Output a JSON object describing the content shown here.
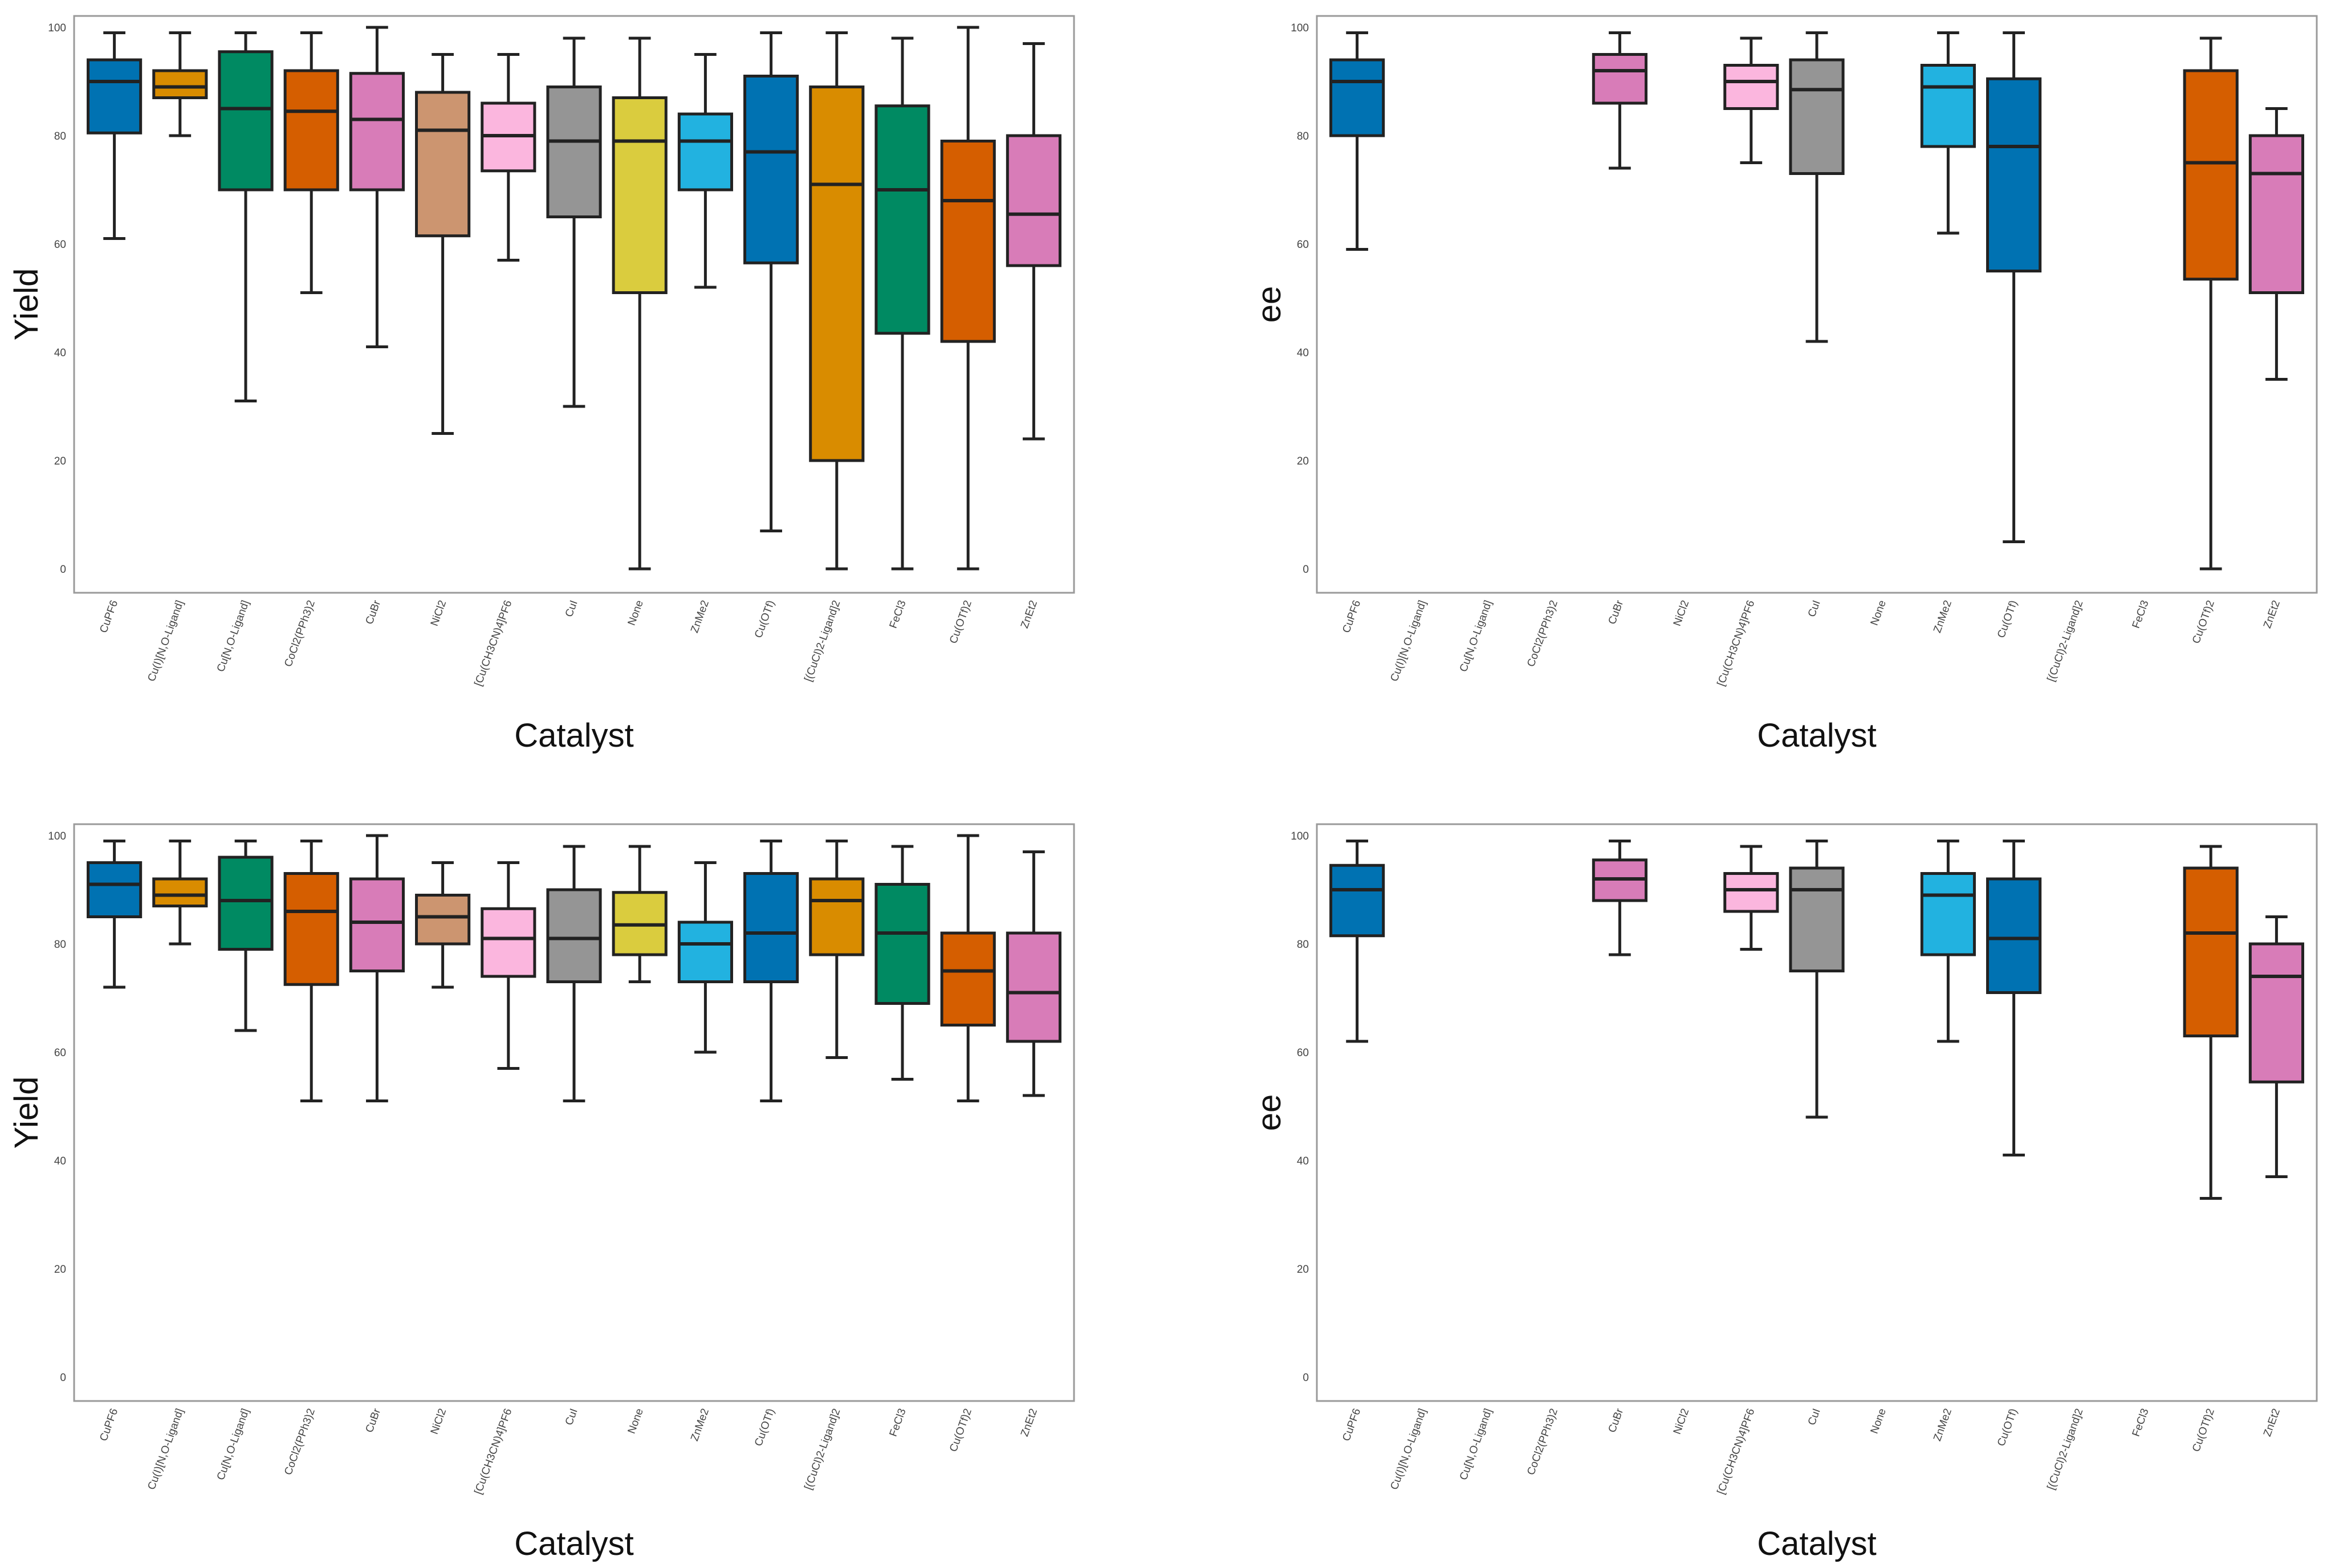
{
  "figure_title": "",
  "chart_data": [
    {
      "type": "box",
      "panel": "top-left",
      "title": "",
      "xlabel": "Catalyst",
      "ylabel": "Yield",
      "ylim": [
        0,
        100
      ],
      "yticks": [
        "0",
        "20",
        "40",
        "60",
        "80",
        "100"
      ],
      "categories": [
        "CuPF6",
        "Cu(I)[N,O-Ligand]",
        "Cu[N,O-Ligand]",
        "CoCl2(PPh3)2",
        "CuBr",
        "NiCl2",
        "[Cu(CH3CN)4]PF6",
        "CuI",
        "None",
        "ZnMe2",
        "Cu(OTf)",
        "[(CuCl)2-Ligand]2",
        "FeCl3",
        "Cu(OTf)2",
        "ZnEt2"
      ],
      "colors": [
        "#0072B2",
        "#D98C00",
        "#008A62",
        "#D55E00",
        "#D87CB8",
        "#CC9570",
        "#FBB6DE",
        "#959595",
        "#DACC3E",
        "#22B2E0",
        "#0072B2",
        "#D98C00",
        "#008A62",
        "#D55E00",
        "#D87CB8"
      ],
      "series": [
        {
          "name": "CuPF6",
          "min": 61,
          "q1": 80.5,
          "median": 90,
          "q3": 94,
          "max": 99
        },
        {
          "name": "Cu(I)[N,O-Ligand]",
          "min": 80,
          "q1": 87,
          "median": 89,
          "q3": 92,
          "max": 99
        },
        {
          "name": "Cu[N,O-Ligand]",
          "min": 31,
          "q1": 70,
          "median": 85,
          "q3": 95.5,
          "max": 99
        },
        {
          "name": "CoCl2(PPh3)2",
          "min": 51,
          "q1": 70,
          "median": 84.5,
          "q3": 92,
          "max": 99
        },
        {
          "name": "CuBr",
          "min": 41,
          "q1": 70,
          "median": 83,
          "q3": 91.5,
          "max": 100
        },
        {
          "name": "NiCl2",
          "min": 25,
          "q1": 61.5,
          "median": 81,
          "q3": 88,
          "max": 95
        },
        {
          "name": "[Cu(CH3CN)4]PF6",
          "min": 57,
          "q1": 73.5,
          "median": 80,
          "q3": 86,
          "max": 95
        },
        {
          "name": "CuI",
          "min": 30,
          "q1": 65,
          "median": 79,
          "q3": 89,
          "max": 98
        },
        {
          "name": "None",
          "min": 0,
          "q1": 51,
          "median": 79,
          "q3": 87,
          "max": 98
        },
        {
          "name": "ZnMe2",
          "min": 52,
          "q1": 70,
          "median": 79,
          "q3": 84,
          "max": 95
        },
        {
          "name": "Cu(OTf)",
          "min": 7,
          "q1": 56.5,
          "median": 77,
          "q3": 91,
          "max": 99
        },
        {
          "name": "[(CuCl)2-Ligand]2",
          "min": 0,
          "q1": 20,
          "median": 71,
          "q3": 89,
          "max": 99
        },
        {
          "name": "FeCl3",
          "min": 0,
          "q1": 43.5,
          "median": 70,
          "q3": 85.5,
          "max": 98
        },
        {
          "name": "Cu(OTf)2",
          "min": 0,
          "q1": 42,
          "median": 68,
          "q3": 79,
          "max": 100
        },
        {
          "name": "ZnEt2",
          "min": 24,
          "q1": 56,
          "median": 65.5,
          "q3": 80,
          "max": 97
        }
      ]
    },
    {
      "type": "box",
      "panel": "top-right",
      "title": "",
      "xlabel": "Catalyst",
      "ylabel": "ee",
      "ylim": [
        0,
        100
      ],
      "yticks": [
        "0",
        "20",
        "40",
        "60",
        "80",
        "100"
      ],
      "categories": [
        "CuPF6",
        "Cu(I)[N,O-Ligand]",
        "Cu[N,O-Ligand]",
        "CoCl2(PPh3)2",
        "CuBr",
        "NiCl2",
        "[Cu(CH3CN)4]PF6",
        "CuI",
        "None",
        "ZnMe2",
        "Cu(OTf)",
        "[(CuCl)2-Ligand]2",
        "FeCl3",
        "Cu(OTf)2",
        "ZnEt2"
      ],
      "colors": [
        "#0072B2",
        "#D98C00",
        "#008A62",
        "#D55E00",
        "#D87CB8",
        "#CC9570",
        "#FBB6DE",
        "#959595",
        "#DACC3E",
        "#22B2E0",
        "#0072B2",
        "#D98C00",
        "#008A62",
        "#D55E00",
        "#D87CB8"
      ],
      "series": [
        {
          "name": "CuPF6",
          "min": 59,
          "q1": 80,
          "median": 90,
          "q3": 94,
          "max": 99
        },
        null,
        null,
        null,
        {
          "name": "CuBr",
          "min": 74,
          "q1": 86,
          "median": 92,
          "q3": 95,
          "max": 99
        },
        null,
        {
          "name": "[Cu(CH3CN)4]PF6",
          "min": 75,
          "q1": 85,
          "median": 90,
          "q3": 93,
          "max": 98
        },
        {
          "name": "CuI",
          "min": 42,
          "q1": 73,
          "median": 88.5,
          "q3": 94,
          "max": 99
        },
        null,
        {
          "name": "ZnMe2",
          "min": 62,
          "q1": 78,
          "median": 89,
          "q3": 93,
          "max": 99
        },
        {
          "name": "Cu(OTf)",
          "min": 5,
          "q1": 55,
          "median": 78,
          "q3": 90.5,
          "max": 99
        },
        null,
        null,
        {
          "name": "Cu(OTf)2",
          "min": 0,
          "q1": 53.5,
          "median": 75,
          "q3": 92,
          "max": 98
        },
        {
          "name": "ZnEt2",
          "min": 35,
          "q1": 51,
          "median": 73,
          "q3": 80,
          "max": 85
        }
      ]
    },
    {
      "type": "box",
      "panel": "bottom-left",
      "title": "",
      "xlabel": "Catalyst",
      "ylabel": "Yield",
      "ylim": [
        0,
        100
      ],
      "yticks": [
        "0",
        "20",
        "40",
        "60",
        "80",
        "100"
      ],
      "categories": [
        "CuPF6",
        "Cu(I)[N,O-Ligand]",
        "Cu[N,O-Ligand]",
        "CoCl2(PPh3)2",
        "CuBr",
        "NiCl2",
        "[Cu(CH3CN)4]PF6",
        "CuI",
        "None",
        "ZnMe2",
        "Cu(OTf)",
        "[(CuCl)2-Ligand]2",
        "FeCl3",
        "Cu(OTf)2",
        "ZnEt2"
      ],
      "colors": [
        "#0072B2",
        "#D98C00",
        "#008A62",
        "#D55E00",
        "#D87CB8",
        "#CC9570",
        "#FBB6DE",
        "#959595",
        "#DACC3E",
        "#22B2E0",
        "#0072B2",
        "#D98C00",
        "#008A62",
        "#D55E00",
        "#D87CB8"
      ],
      "series": [
        {
          "name": "CuPF6",
          "min": 72,
          "q1": 85,
          "median": 91,
          "q3": 95,
          "max": 99
        },
        {
          "name": "Cu(I)[N,O-Ligand]",
          "min": 80,
          "q1": 87,
          "median": 89,
          "q3": 92,
          "max": 99
        },
        {
          "name": "Cu[N,O-Ligand]",
          "min": 64,
          "q1": 79,
          "median": 88,
          "q3": 96,
          "max": 99
        },
        {
          "name": "CoCl2(PPh3)2",
          "min": 51,
          "q1": 72.5,
          "median": 86,
          "q3": 93,
          "max": 99
        },
        {
          "name": "CuBr",
          "min": 51,
          "q1": 75,
          "median": 84,
          "q3": 92,
          "max": 100
        },
        {
          "name": "NiCl2",
          "min": 72,
          "q1": 80,
          "median": 85,
          "q3": 89,
          "max": 95
        },
        {
          "name": "[Cu(CH3CN)4]PF6",
          "min": 57,
          "q1": 74,
          "median": 81,
          "q3": 86.5,
          "max": 95
        },
        {
          "name": "CuI",
          "min": 51,
          "q1": 73,
          "median": 81,
          "q3": 90,
          "max": 98
        },
        {
          "name": "None",
          "min": 73,
          "q1": 78,
          "median": 83.5,
          "q3": 89.5,
          "max": 98
        },
        {
          "name": "ZnMe2",
          "min": 60,
          "q1": 73,
          "median": 80,
          "q3": 84,
          "max": 95
        },
        {
          "name": "Cu(OTf)",
          "min": 51,
          "q1": 73,
          "median": 82,
          "q3": 93,
          "max": 99
        },
        {
          "name": "[(CuCl)2-Ligand]2",
          "min": 59,
          "q1": 78,
          "median": 88,
          "q3": 92,
          "max": 99
        },
        {
          "name": "FeCl3",
          "min": 55,
          "q1": 69,
          "median": 82,
          "q3": 91,
          "max": 98
        },
        {
          "name": "Cu(OTf)2",
          "min": 51,
          "q1": 65,
          "median": 75,
          "q3": 82,
          "max": 100
        },
        {
          "name": "ZnEt2",
          "min": 52,
          "q1": 62,
          "median": 71,
          "q3": 82,
          "max": 97
        }
      ]
    },
    {
      "type": "box",
      "panel": "bottom-right",
      "title": "",
      "xlabel": "Catalyst",
      "ylabel": "ee",
      "ylim": [
        0,
        100
      ],
      "yticks": [
        "0",
        "20",
        "40",
        "60",
        "80",
        "100"
      ],
      "categories": [
        "CuPF6",
        "Cu(I)[N,O-Ligand]",
        "Cu[N,O-Ligand]",
        "CoCl2(PPh3)2",
        "CuBr",
        "NiCl2",
        "[Cu(CH3CN)4]PF6",
        "CuI",
        "None",
        "ZnMe2",
        "Cu(OTf)",
        "[(CuCl)2-Ligand]2",
        "FeCl3",
        "Cu(OTf)2",
        "ZnEt2"
      ],
      "colors": [
        "#0072B2",
        "#D98C00",
        "#008A62",
        "#D55E00",
        "#D87CB8",
        "#CC9570",
        "#FBB6DE",
        "#959595",
        "#DACC3E",
        "#22B2E0",
        "#0072B2",
        "#D98C00",
        "#008A62",
        "#D55E00",
        "#D87CB8"
      ],
      "series": [
        {
          "name": "CuPF6",
          "min": 62,
          "q1": 81.5,
          "median": 90,
          "q3": 94.5,
          "max": 99
        },
        null,
        null,
        null,
        {
          "name": "CuBr",
          "min": 78,
          "q1": 88,
          "median": 92,
          "q3": 95.5,
          "max": 99
        },
        null,
        {
          "name": "[Cu(CH3CN)4]PF6",
          "min": 79,
          "q1": 86,
          "median": 90,
          "q3": 93,
          "max": 98
        },
        {
          "name": "CuI",
          "min": 48,
          "q1": 75,
          "median": 90,
          "q3": 94,
          "max": 99
        },
        null,
        {
          "name": "ZnMe2",
          "min": 62,
          "q1": 78,
          "median": 89,
          "q3": 93,
          "max": 99
        },
        {
          "name": "Cu(OTf)",
          "min": 41,
          "q1": 71,
          "median": 81,
          "q3": 92,
          "max": 99
        },
        null,
        null,
        {
          "name": "Cu(OTf)2",
          "min": 33,
          "q1": 63,
          "median": 82,
          "q3": 94,
          "max": 98
        },
        {
          "name": "ZnEt2",
          "min": 37,
          "q1": 54.5,
          "median": 74,
          "q3": 80,
          "max": 85
        }
      ]
    }
  ]
}
